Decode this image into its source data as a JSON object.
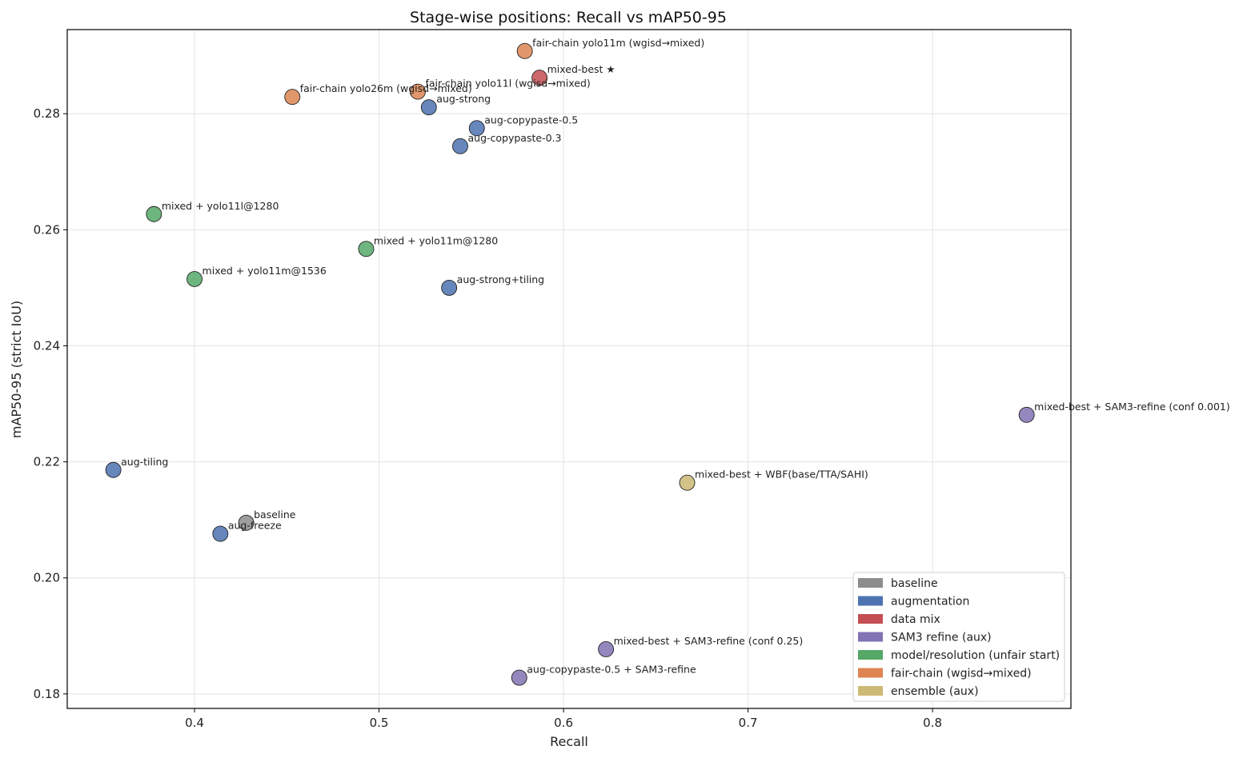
{
  "chart_data": {
    "type": "scatter",
    "title": "Stage-wise positions: Recall vs mAP50-95",
    "xlabel": "Recall",
    "ylabel": "mAP50-95 (strict IoU)",
    "xlim": [
      0.331,
      0.875
    ],
    "ylim": [
      0.1775,
      0.2945
    ],
    "xticks": [
      0.4,
      0.5,
      0.6,
      0.7,
      0.8
    ],
    "xtick_labels": [
      "0.4",
      "0.5",
      "0.6",
      "0.7",
      "0.8"
    ],
    "yticks": [
      0.18,
      0.2,
      0.22,
      0.24,
      0.26,
      0.28
    ],
    "ytick_labels": [
      "0.18",
      "0.20",
      "0.22",
      "0.24",
      "0.26",
      "0.28"
    ],
    "grid": true,
    "legend_position": "lower-right",
    "categories": [
      {
        "key": "baseline",
        "name": "baseline",
        "color": "#8c8c8c"
      },
      {
        "key": "augmentation",
        "name": "augmentation",
        "color": "#4c72b0"
      },
      {
        "key": "datamix",
        "name": "data mix",
        "color": "#c44e52"
      },
      {
        "key": "sam3",
        "name": "SAM3 refine (aux)",
        "color": "#8172b3"
      },
      {
        "key": "model",
        "name": "model/resolution (unfair start)",
        "color": "#55a868"
      },
      {
        "key": "fairchain",
        "name": "fair-chain (wgisd→mixed)",
        "color": "#dd8452"
      },
      {
        "key": "ensemble",
        "name": "ensemble (aux)",
        "color": "#ccb974"
      }
    ],
    "points": [
      {
        "label": "baseline",
        "x": 0.428,
        "y": 0.2095,
        "category": "baseline"
      },
      {
        "label": "aug-freeze",
        "x": 0.414,
        "y": 0.2076,
        "category": "augmentation"
      },
      {
        "label": "aug-tiling",
        "x": 0.356,
        "y": 0.2186,
        "category": "augmentation"
      },
      {
        "label": "aug-strong",
        "x": 0.527,
        "y": 0.2811,
        "category": "augmentation"
      },
      {
        "label": "aug-copypaste-0.5",
        "x": 0.553,
        "y": 0.2775,
        "category": "augmentation"
      },
      {
        "label": "aug-copypaste-0.3",
        "x": 0.544,
        "y": 0.2744,
        "category": "augmentation"
      },
      {
        "label": "aug-strong+tiling",
        "x": 0.538,
        "y": 0.25,
        "category": "augmentation"
      },
      {
        "label": "mixed-best ★",
        "x": 0.587,
        "y": 0.2862,
        "category": "datamix"
      },
      {
        "label": "mixed + yolo11l@1280",
        "x": 0.378,
        "y": 0.2627,
        "category": "model"
      },
      {
        "label": "mixed + yolo11m@1280",
        "x": 0.493,
        "y": 0.2567,
        "category": "model"
      },
      {
        "label": "mixed + yolo11m@1536",
        "x": 0.4,
        "y": 0.2515,
        "category": "model"
      },
      {
        "label": "fair-chain yolo11m (wgisd→mixed)",
        "x": 0.579,
        "y": 0.2908,
        "category": "fairchain"
      },
      {
        "label": "fair-chain yolo26m (wgisd→mixed)",
        "x": 0.453,
        "y": 0.2829,
        "category": "fairchain"
      },
      {
        "label": "fair-chain yolo11l (wgisd→mixed)",
        "x": 0.521,
        "y": 0.2838,
        "category": "fairchain"
      },
      {
        "label": "mixed-best + SAM3-refine (conf 0.001)",
        "x": 0.851,
        "y": 0.2281,
        "category": "sam3"
      },
      {
        "label": "mixed-best + SAM3-refine (conf 0.25)",
        "x": 0.623,
        "y": 0.1877,
        "category": "sam3"
      },
      {
        "label": "aug-copypaste-0.5 + SAM3-refine",
        "x": 0.576,
        "y": 0.1828,
        "category": "sam3"
      },
      {
        "label": "mixed-best + WBF(base/TTA/SAHI)",
        "x": 0.667,
        "y": 0.2164,
        "category": "ensemble"
      }
    ]
  }
}
